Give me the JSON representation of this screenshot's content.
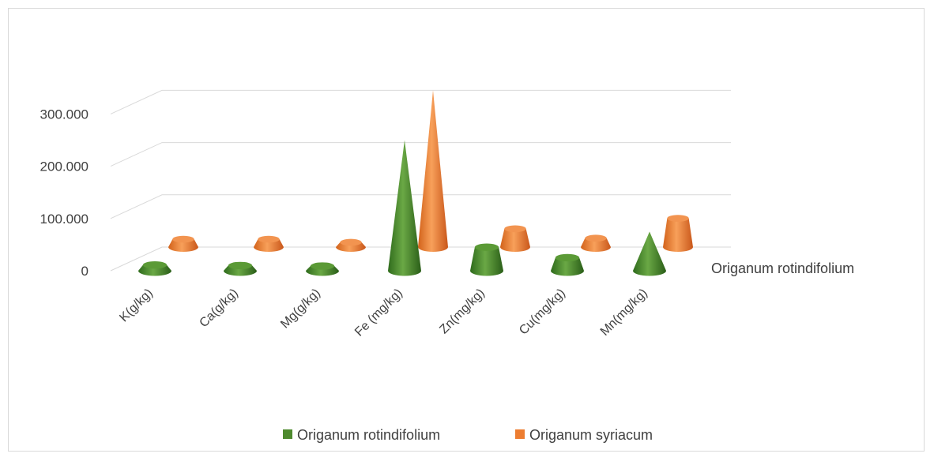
{
  "chart_data": {
    "type": "bar",
    "style": "3d-cone",
    "categories": [
      "K(g/kg)",
      "Ca(g/kg)",
      "Mg(g/kg)",
      "Fe (mg/kg)",
      "Zn(mg/kg)",
      "Cu(mg/kg)",
      "Mn(mg/kg)"
    ],
    "series": [
      {
        "name": "Origanum rotindifolium",
        "color": "#4e8a2e",
        "values": [
          11,
          10,
          5,
          250,
          45,
          25,
          75
        ]
      },
      {
        "name": "Origanum syriacum",
        "color": "#ed7d31",
        "values": [
          15,
          15,
          7,
          300,
          35,
          17,
          55
        ]
      }
    ],
    "y_ticks": [
      "0",
      "100.000",
      "200.000",
      "300.000"
    ],
    "ylim": [
      0,
      300
    ],
    "depth_axis_label": "Origanum rotindifolium",
    "grid": true,
    "legend_position": "bottom"
  }
}
